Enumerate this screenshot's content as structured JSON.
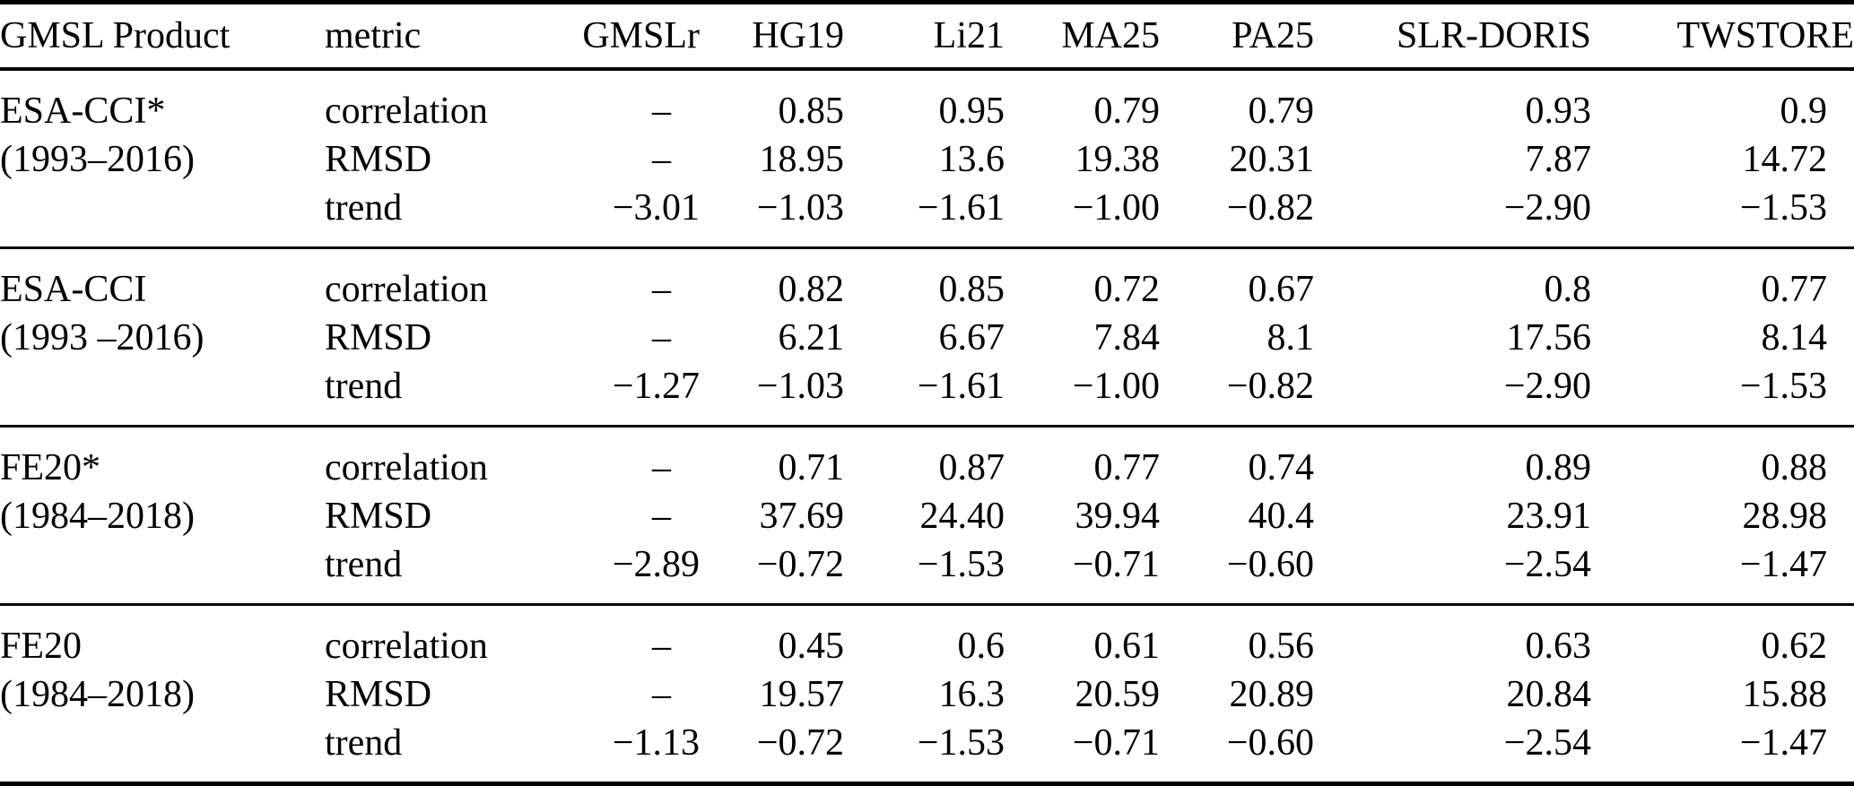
{
  "colors": {
    "background": "#ffffff",
    "text": "#000000",
    "rule": "#000000"
  },
  "table": {
    "empty_cell": "–",
    "columns": [
      "GMSL Product",
      "metric",
      "GMSLr",
      "HG19",
      "Li21",
      "MA25",
      "PA25",
      "SLR-DORIS",
      "TWSTORE"
    ],
    "groups": [
      {
        "product": "ESA-CCI*",
        "period": "(1993–2016)",
        "rows": [
          {
            "metric": "correlation",
            "values": [
              "–",
              "0.85",
              "0.95",
              "0.79",
              "0.79",
              "0.93",
              "0.9"
            ]
          },
          {
            "metric": "RMSD",
            "values": [
              "–",
              "18.95",
              "13.6",
              "19.38",
              "20.31",
              "7.87",
              "14.72"
            ]
          },
          {
            "metric": "trend",
            "values": [
              "−3.01",
              "−1.03",
              "−1.61",
              "−1.00",
              "−0.82",
              "−2.90",
              "−1.53"
            ]
          }
        ]
      },
      {
        "product": "ESA-CCI",
        "period": "(1993 –2016)",
        "rows": [
          {
            "metric": "correlation",
            "values": [
              "–",
              "0.82",
              "0.85",
              "0.72",
              "0.67",
              "0.8",
              "0.77"
            ]
          },
          {
            "metric": "RMSD",
            "values": [
              "–",
              "6.21",
              "6.67",
              "7.84",
              "8.1",
              "17.56",
              "8.14"
            ]
          },
          {
            "metric": "trend",
            "values": [
              "−1.27",
              "−1.03",
              "−1.61",
              "−1.00",
              "−0.82",
              "−2.90",
              "−1.53"
            ]
          }
        ]
      },
      {
        "product": "FE20*",
        "period": "(1984–2018)",
        "rows": [
          {
            "metric": "correlation",
            "values": [
              "–",
              "0.71",
              "0.87",
              "0.77",
              "0.74",
              "0.89",
              "0.88"
            ]
          },
          {
            "metric": "RMSD",
            "values": [
              "–",
              "37.69",
              "24.40",
              "39.94",
              "40.4",
              "23.91",
              "28.98"
            ]
          },
          {
            "metric": "trend",
            "values": [
              "−2.89",
              "−0.72",
              "−1.53",
              "−0.71",
              "−0.60",
              "−2.54",
              "−1.47"
            ]
          }
        ]
      },
      {
        "product": "FE20",
        "period": "(1984–2018)",
        "rows": [
          {
            "metric": "correlation",
            "values": [
              "–",
              "0.45",
              "0.6",
              "0.61",
              "0.56",
              "0.63",
              "0.62"
            ]
          },
          {
            "metric": "RMSD",
            "values": [
              "–",
              "19.57",
              "16.3",
              "20.59",
              "20.89",
              "20.84",
              "15.88"
            ]
          },
          {
            "metric": "trend",
            "values": [
              "−1.13",
              "−0.72",
              "−1.53",
              "−0.71",
              "−0.60",
              "−2.54",
              "−1.47"
            ]
          }
        ]
      }
    ]
  }
}
